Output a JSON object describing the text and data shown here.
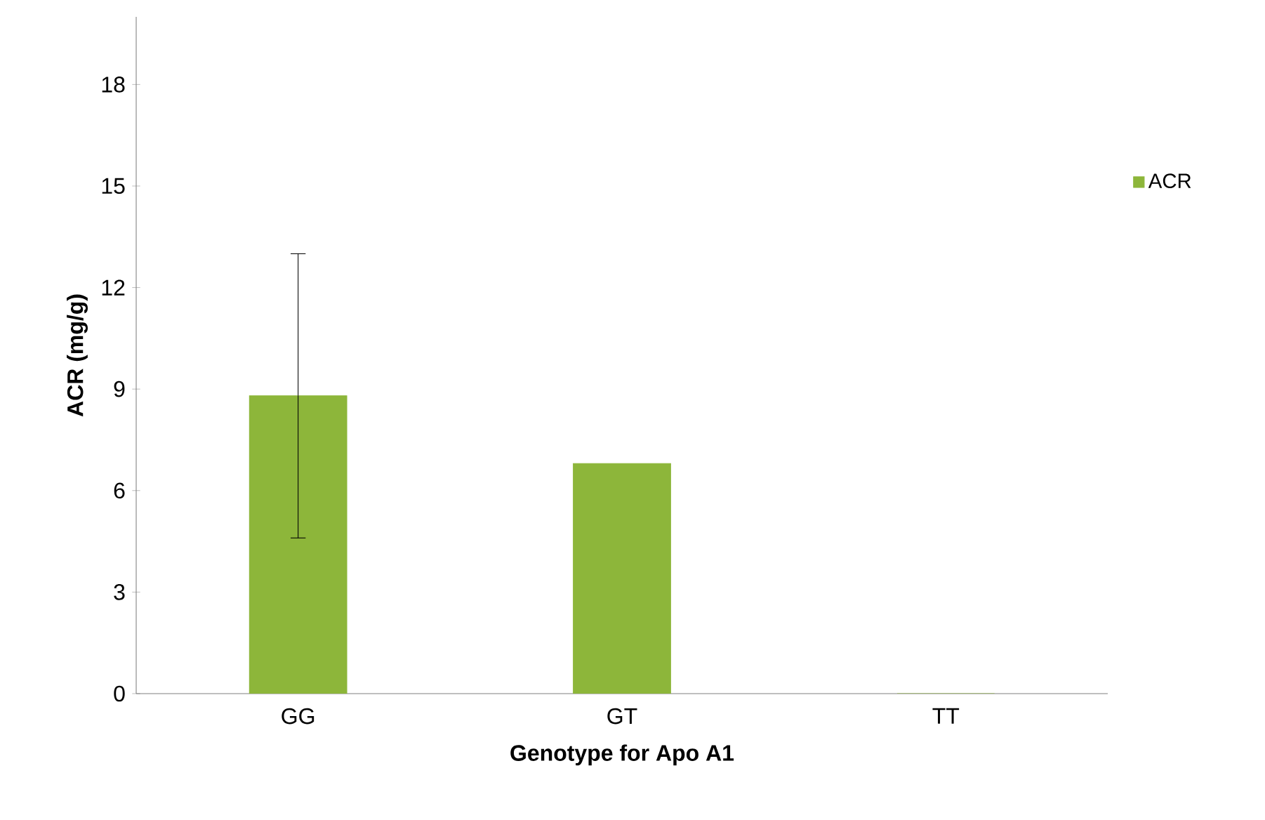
{
  "chart_data": {
    "type": "bar",
    "xlabel": "Genotype for Apo A1",
    "ylabel": "ACR (mg/g)",
    "categories": [
      "GG",
      "GT",
      "TT"
    ],
    "series": [
      {
        "name": "ACR",
        "color": "#8db63a",
        "values": [
          8.8,
          6.8,
          0
        ],
        "errors": [
          4.2,
          null,
          null
        ]
      }
    ],
    "ylim": [
      0,
      20
    ],
    "yticks": [
      0,
      3,
      6,
      9,
      12,
      15,
      18
    ],
    "grid": false,
    "legend": "right"
  }
}
